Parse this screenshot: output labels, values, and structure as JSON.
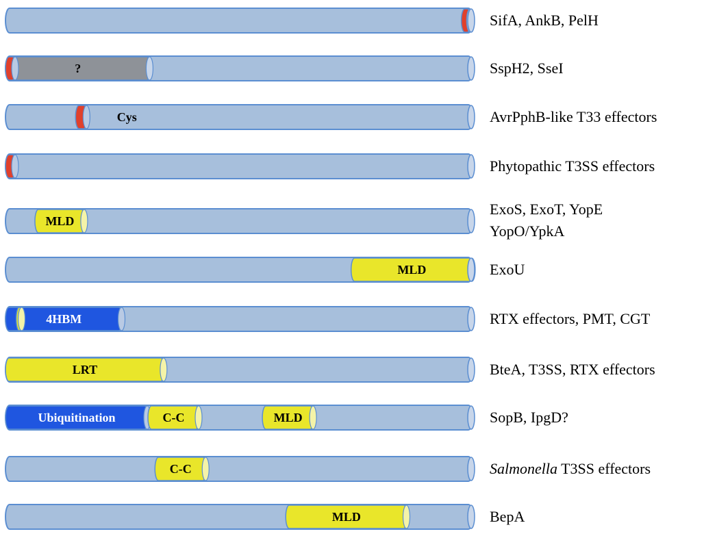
{
  "colors": {
    "bar": "#a7bfdc",
    "bar_stroke": "#5b8ed1",
    "red": "#e0402c",
    "yellow": "#e9e62a",
    "blue": "#1f56e0",
    "gray": "#8e9298"
  },
  "rows": [
    {
      "label": "SifA, AnkB, PelH",
      "domains": [
        {
          "kind": "red",
          "start": 0.976,
          "end": 0.996,
          "text": ""
        }
      ]
    },
    {
      "label": "SspH2, SseI",
      "domains": [
        {
          "kind": "gray",
          "start": 0.0,
          "end": 0.31,
          "text": "?"
        },
        {
          "kind": "red",
          "start": 0.0,
          "end": 0.022,
          "text": ""
        }
      ]
    },
    {
      "label": "AvrPphB-like T33 effectors",
      "domains": [
        {
          "kind": "red",
          "start": 0.15,
          "end": 0.175,
          "text": ""
        }
      ],
      "floating_text": "Cys"
    },
    {
      "label": "Phytopathic T3SS effectors",
      "domains": [
        {
          "kind": "red",
          "start": 0.0,
          "end": 0.022,
          "text": ""
        }
      ]
    },
    {
      "label_lines": [
        "ExoS, ExoT, YopE",
        "YopO/YpkA"
      ],
      "domains": [
        {
          "kind": "yellow",
          "start": 0.063,
          "end": 0.17,
          "text": "MLD"
        }
      ]
    },
    {
      "label": "ExoU",
      "domains": [
        {
          "kind": "yellow",
          "start": 0.74,
          "end": 1.0,
          "text": "MLD"
        }
      ]
    },
    {
      "label": "RTX effectors, PMT, CGT",
      "domains": [
        {
          "kind": "blue",
          "start": 0.0,
          "end": 0.25,
          "text": "4HBM"
        },
        {
          "kind": "yellow",
          "start": 0.023,
          "end": 0.036,
          "text": ""
        }
      ]
    },
    {
      "label": "BteA, T3SS, RTX effectors",
      "domains": [
        {
          "kind": "yellow",
          "start": 0.0,
          "end": 0.34,
          "text": "LRT"
        }
      ]
    },
    {
      "label": "SopB, IpgD?",
      "domains": [
        {
          "kind": "blue",
          "start": 0.0,
          "end": 0.305,
          "text": "Ubiquitination"
        },
        {
          "kind": "yellow",
          "start": 0.305,
          "end": 0.415,
          "text": "C-C"
        },
        {
          "kind": "yellow",
          "start": 0.55,
          "end": 0.66,
          "text": "MLD"
        }
      ]
    },
    {
      "label_italic": "Salmonella",
      "label_rest": " T3SS effectors",
      "domains": [
        {
          "kind": "yellow",
          "start": 0.32,
          "end": 0.43,
          "text": "C-C"
        }
      ]
    },
    {
      "label": "BepA",
      "domains": [
        {
          "kind": "yellow",
          "start": 0.6,
          "end": 0.86,
          "text": "MLD"
        }
      ]
    }
  ]
}
